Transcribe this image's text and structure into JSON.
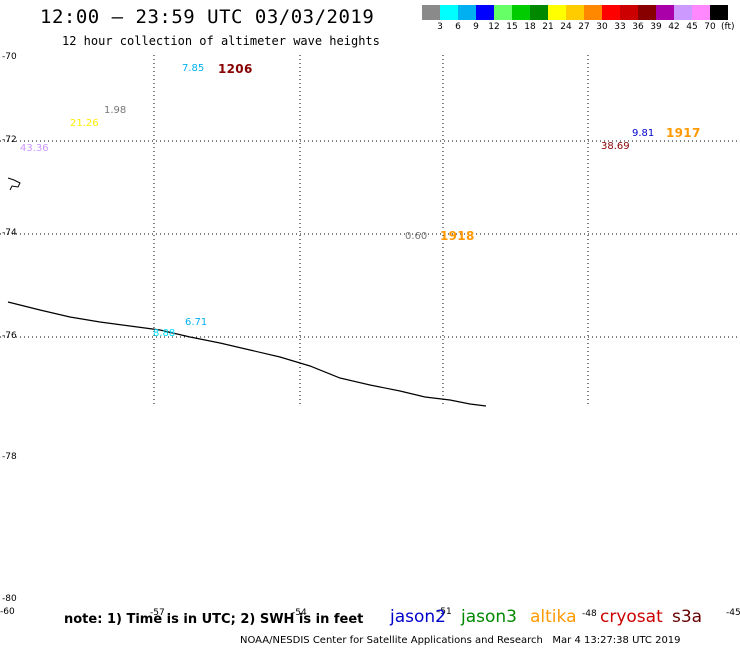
{
  "header": {
    "title": "12:00 — 23:59 UTC 03/03/2019",
    "subtitle": "12 hour collection of altimeter wave heights"
  },
  "scale": {
    "colors": [
      "#8a8a8a",
      "#00ffff",
      "#00b0f0",
      "#0000ff",
      "#66ff66",
      "#00cc00",
      "#008800",
      "#ffff00",
      "#ffcc00",
      "#ff8800",
      "#ff0000",
      "#cc0000",
      "#880000",
      "#aa00aa",
      "#cc99ff",
      "#ff88ff",
      "#000000"
    ],
    "labels": [
      "3",
      "6",
      "9",
      "12",
      "15",
      "18",
      "21",
      "24",
      "27",
      "30",
      "33",
      "36",
      "39",
      "42",
      "45",
      "70"
    ],
    "unit": "(ft)"
  },
  "lat_labels": [
    "-70",
    "-72",
    "-74",
    "-76",
    "-78",
    "-80"
  ],
  "lon_labels": [
    "-60",
    "-57",
    "-54",
    "-51",
    "-48",
    "-45"
  ],
  "wave_labels": [
    {
      "text": "7.85",
      "color": "#00b0f0",
      "kind": "value"
    },
    {
      "text": "1206",
      "color": "#880000",
      "kind": "time"
    },
    {
      "text": "1.98",
      "color": "#777777",
      "kind": "value"
    },
    {
      "text": "21.26",
      "color": "#ffee00",
      "kind": "value"
    },
    {
      "text": "43.36",
      "color": "#cc99ff",
      "kind": "value"
    },
    {
      "text": "9.81",
      "color": "#0000cc",
      "kind": "value"
    },
    {
      "text": "1917",
      "color": "#ff9900",
      "kind": "time"
    },
    {
      "text": "38.69",
      "color": "#880000",
      "kind": "value"
    },
    {
      "text": "0.60",
      "color": "#777777",
      "kind": "value"
    },
    {
      "text": "1918",
      "color": "#ff9900",
      "kind": "time"
    },
    {
      "text": "6.71",
      "color": "#00b0f0",
      "kind": "value"
    },
    {
      "text": "8.88",
      "color": "#00e0ff",
      "kind": "value"
    }
  ],
  "footer": {
    "note": "note: 1) Time is in UTC; 2) SWH is in feet",
    "satellites": [
      {
        "name": "jason2",
        "color": "#0000cc"
      },
      {
        "name": "jason3",
        "color": "#008800"
      },
      {
        "name": "altika",
        "color": "#ff9900"
      },
      {
        "name": "cryosat",
        "color": "#cc0000"
      },
      {
        "name": "s3a",
        "color": "#660000"
      }
    ],
    "credit": "NOAA/NESDIS Center for Satellite Applications and Research",
    "timestamp": "Mar  4 13:27:38 UTC 2019"
  }
}
